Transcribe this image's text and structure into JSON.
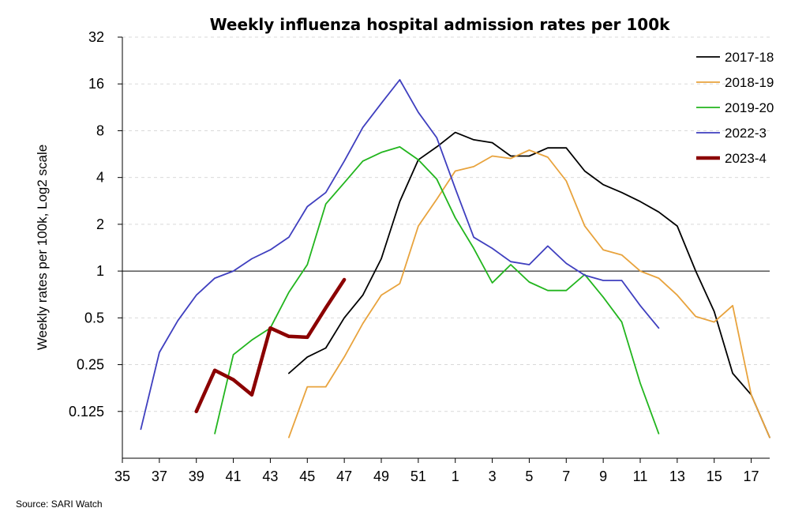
{
  "chart_data": {
    "type": "line",
    "title": "Weekly influenza hospital admission rates per 100k",
    "ylabel": "Weekly rates per 100k, Log2 scale",
    "xlabel": "",
    "source": "Source: SARI Watch",
    "y_scale": "log2",
    "ylim": [
      0.0625,
      32
    ],
    "y_ticks": [
      0.125,
      0.25,
      0.5,
      1,
      2,
      4,
      8,
      16,
      32
    ],
    "y_tick_labels": [
      "0.125",
      "0.25",
      "0.5",
      "1",
      "2",
      "4",
      "8",
      "16",
      "32"
    ],
    "reference_line": 1,
    "grid": true,
    "legend_position": "top-right",
    "x_tick_labels": [
      "35",
      "37",
      "39",
      "41",
      "43",
      "45",
      "47",
      "49",
      "51",
      "1",
      "3",
      "5",
      "7",
      "9",
      "11",
      "13",
      "15",
      "17"
    ],
    "x_categories": [
      "35",
      "36",
      "37",
      "38",
      "39",
      "40",
      "41",
      "42",
      "43",
      "44",
      "45",
      "46",
      "47",
      "48",
      "49",
      "50",
      "51",
      "52",
      "1",
      "2",
      "3",
      "4",
      "5",
      "6",
      "7",
      "8",
      "9",
      "10",
      "11",
      "12",
      "13",
      "14",
      "15",
      "16",
      "17",
      "18"
    ],
    "series": [
      {
        "name": "2017-18",
        "color": "#000000",
        "line_width": "thin",
        "start_week": "44",
        "values": [
          0.22,
          0.28,
          0.32,
          0.5,
          0.7,
          1.2,
          2.8,
          5.2,
          6.3,
          7.8,
          7.0,
          6.7,
          5.5,
          5.5,
          6.2,
          6.2,
          4.4,
          3.6,
          3.2,
          2.8,
          2.4,
          1.95,
          1.0,
          0.55,
          0.22,
          0.16,
          0.085
        ]
      },
      {
        "name": "2018-19",
        "color": "#E8A33D",
        "line_width": "thin",
        "start_week": "44",
        "values": [
          0.085,
          0.18,
          0.18,
          0.28,
          0.46,
          0.7,
          0.83,
          1.95,
          2.9,
          4.4,
          4.7,
          5.5,
          5.3,
          6.0,
          5.4,
          3.8,
          1.95,
          1.37,
          1.27,
          1.0,
          0.9,
          0.7,
          0.51,
          0.47,
          0.6,
          0.16,
          0.085
        ]
      },
      {
        "name": "2019-20",
        "color": "#22B51E",
        "line_width": "thin",
        "start_week": "40",
        "values": [
          0.09,
          0.29,
          0.36,
          0.43,
          0.73,
          1.1,
          2.7,
          3.7,
          5.1,
          5.8,
          6.3,
          5.2,
          3.9,
          2.2,
          1.4,
          0.84,
          1.1,
          0.85,
          0.75,
          0.75,
          0.95,
          0.68,
          0.47,
          0.19,
          0.09
        ]
      },
      {
        "name": "2022-3",
        "color": "#3F3FBF",
        "line_width": "thin",
        "start_week": "36",
        "values": [
          0.096,
          0.3,
          0.48,
          0.7,
          0.9,
          1.0,
          1.2,
          1.37,
          1.65,
          2.6,
          3.2,
          5.1,
          8.4,
          12.0,
          17.0,
          10.5,
          7.2,
          3.4,
          1.65,
          1.4,
          1.15,
          1.1,
          1.45,
          1.12,
          0.94,
          0.87,
          0.87,
          0.6,
          0.43
        ]
      },
      {
        "name": "2023-4",
        "color": "#8B0000",
        "line_width": "thick",
        "start_week": "39",
        "values": [
          0.125,
          0.23,
          0.2,
          0.16,
          0.43,
          0.38,
          0.375,
          0.58,
          0.88
        ]
      }
    ]
  }
}
